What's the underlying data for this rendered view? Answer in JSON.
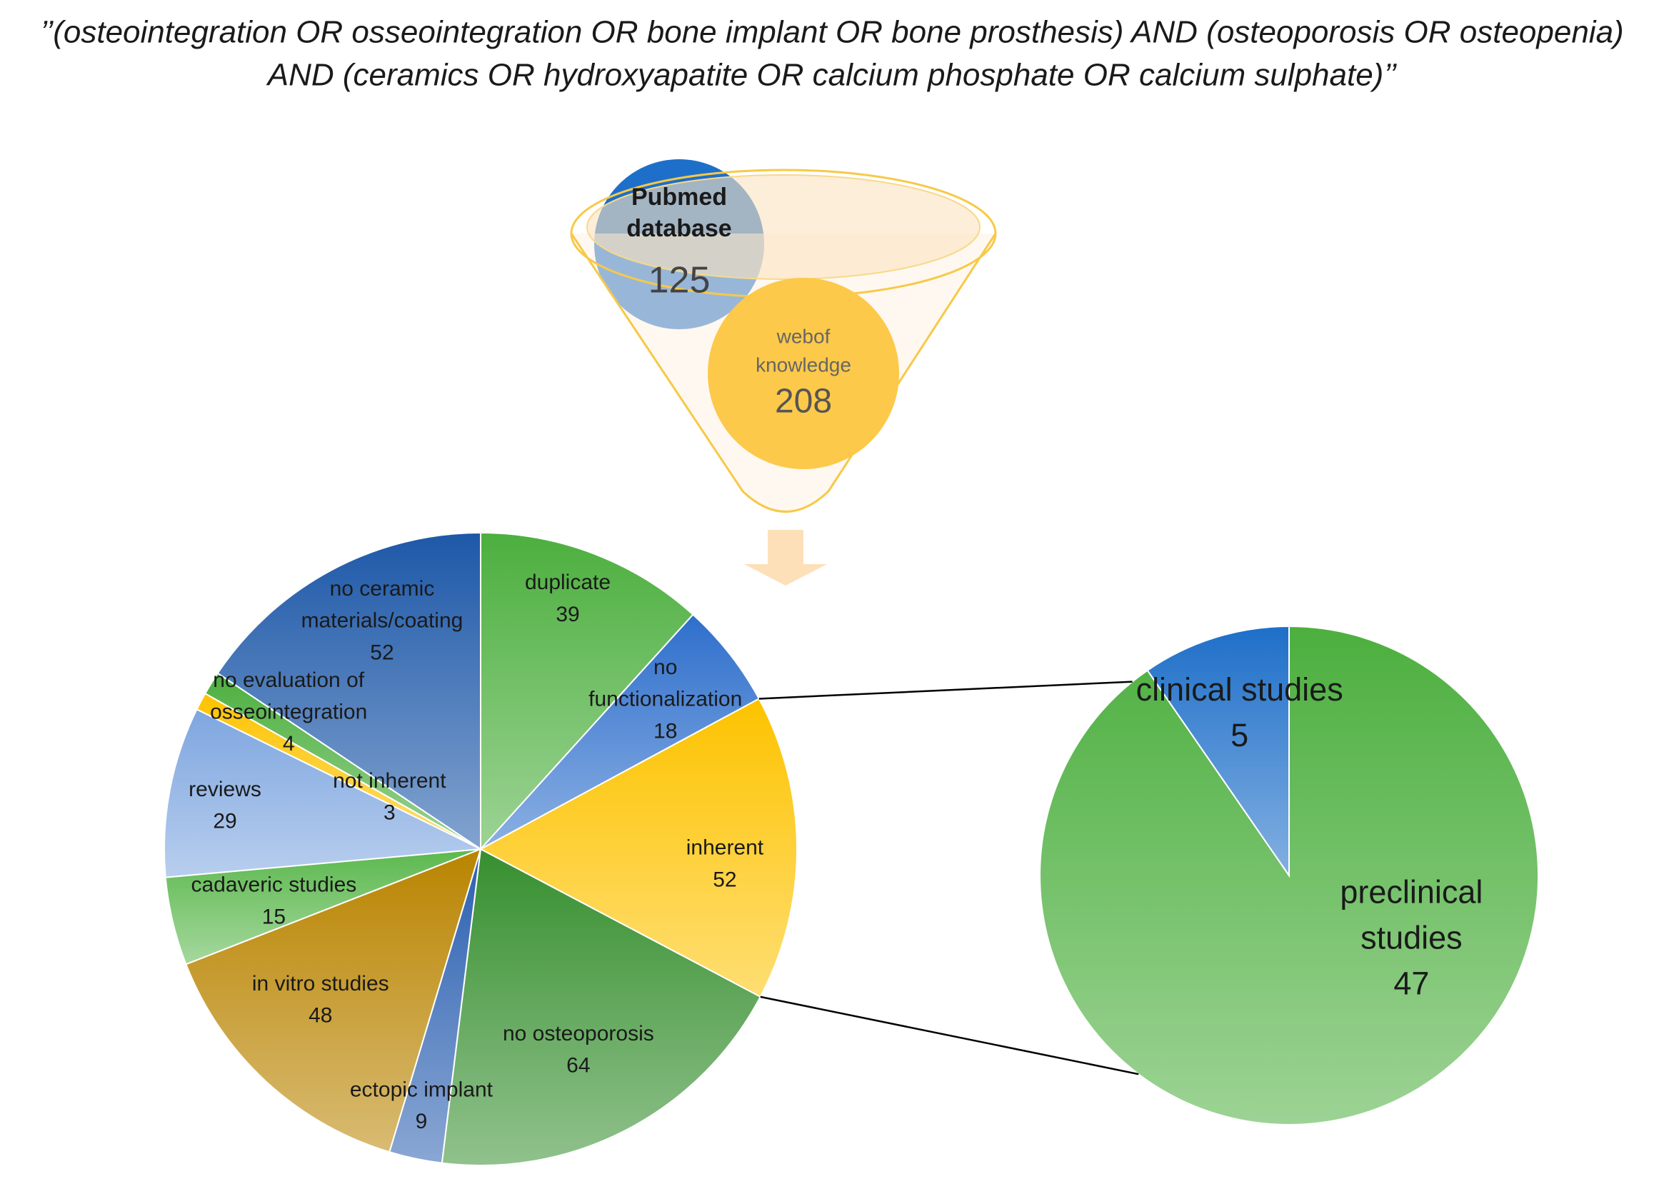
{
  "query": [
    "’’(osteointegration OR osseointegration OR bone implant OR bone prosthesis) AND (osteoporosis OR osteopenia)",
    "AND (ceramics OR hydroxyapatite OR calcium phosphate OR calcium sulphate)’’"
  ],
  "sources": [
    {
      "label": [
        "Pubmed",
        "database"
      ],
      "value": 125,
      "color": "#1e6fc9"
    },
    {
      "label": [
        "webof",
        "knowledge"
      ],
      "value": 208,
      "color": "#fdc94a"
    }
  ],
  "pie": {
    "slices": [
      {
        "label": [
          "duplicate"
        ],
        "value": 39,
        "color": "#4caf3e"
      },
      {
        "label": [
          "no",
          "functionalization"
        ],
        "value": 18,
        "color": "#2e6fcc"
      },
      {
        "label": [
          "inherent"
        ],
        "value": 52,
        "color": "#fdc300"
      },
      {
        "label": [
          "no osteoporosis"
        ],
        "value": 64,
        "color": "#368f2f"
      },
      {
        "label": [
          "ectopic implant"
        ],
        "value": 9,
        "color": "#2a5fb0"
      },
      {
        "label": [
          "in vitro studies"
        ],
        "value": 48,
        "color": "#b98400"
      },
      {
        "label": [
          "cadaveric studies"
        ],
        "value": 15,
        "color": "#5cb84e"
      },
      {
        "label": [
          "reviews"
        ],
        "value": 29,
        "color": "#7ea6e0"
      },
      {
        "label": [
          "not inherent"
        ],
        "value": 3,
        "color": "#fdc300"
      },
      {
        "label": [
          "no evaluation of",
          "osseointegration"
        ],
        "value": 4,
        "color": "#4caf3e"
      },
      {
        "label": [
          "no ceramic",
          "materials/coating"
        ],
        "value": 52,
        "color": "#1d58a8"
      }
    ]
  },
  "subpie": {
    "slices": [
      {
        "label": [
          "preclinical",
          "studies"
        ],
        "value": 47,
        "color": "#4caf3e"
      },
      {
        "label": [
          "clinical studies"
        ],
        "value": 5,
        "color": "#1e6fc9"
      }
    ]
  }
}
